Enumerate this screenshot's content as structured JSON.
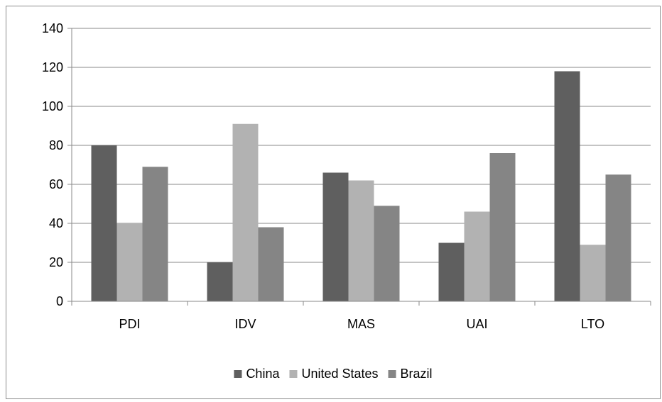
{
  "chart_data": {
    "type": "bar",
    "categories": [
      "PDI",
      "IDV",
      "MAS",
      "UAI",
      "LTO"
    ],
    "series": [
      {
        "name": "China",
        "values": [
          80,
          20,
          66,
          30,
          118
        ],
        "color": "#5f5f5f"
      },
      {
        "name": "United States",
        "values": [
          40,
          91,
          62,
          46,
          29
        ],
        "color": "#b2b2b2"
      },
      {
        "name": "Brazil",
        "values": [
          69,
          38,
          49,
          76,
          65
        ],
        "color": "#858585"
      }
    ],
    "ylim": [
      0,
      140
    ],
    "yticks": [
      0,
      20,
      40,
      60,
      80,
      100,
      120,
      140
    ],
    "grid": true,
    "legend_position": "bottom"
  }
}
